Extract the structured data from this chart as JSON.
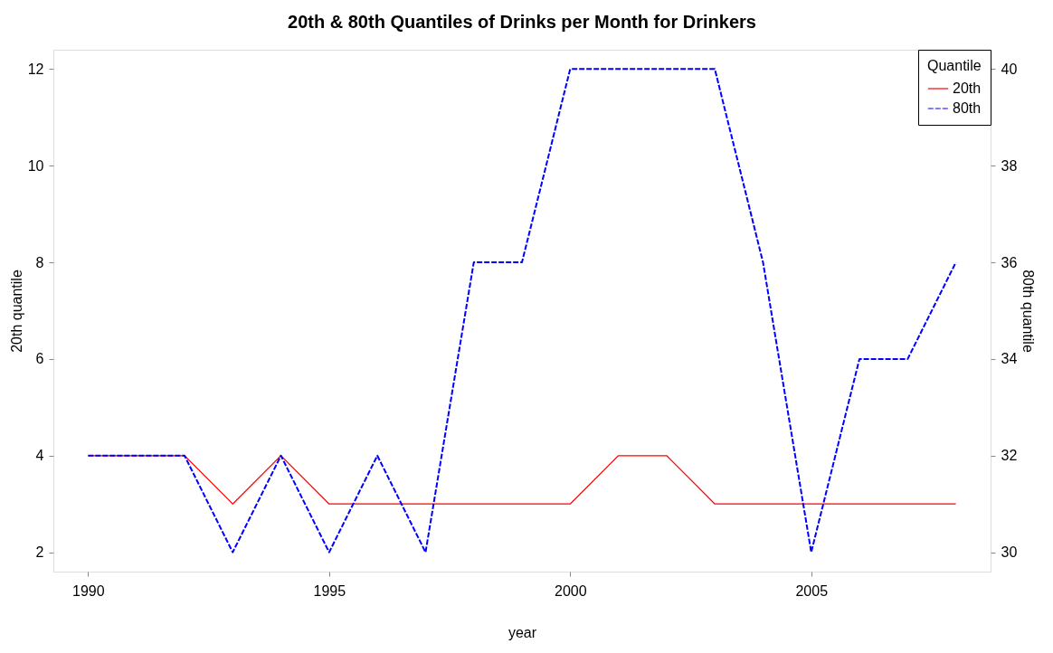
{
  "chart_data": {
    "type": "line",
    "title": "20th & 80th Quantiles of Drinks per Month for Drinkers",
    "xlabel": "year",
    "ylabel": "20th quantile",
    "y2label": "80th quantile",
    "legend_title": "Quantile",
    "legend": "top right",
    "grid": false,
    "marker": "none",
    "x": [
      1990,
      1991,
      1992,
      1993,
      1994,
      1995,
      1996,
      1997,
      1998,
      1999,
      2000,
      2001,
      2002,
      2003,
      2004,
      2005,
      2006,
      2007,
      2008
    ],
    "xlim": [
      1989.28,
      2008.72
    ],
    "xticks": [
      1990,
      1995,
      2000,
      2005
    ],
    "ylim": [
      1.6,
      12.4
    ],
    "yticks": [
      2,
      4,
      6,
      8,
      10,
      12
    ],
    "y2lim": [
      29.6,
      40.4
    ],
    "y2ticks": [
      30,
      32,
      34,
      36,
      38,
      40
    ],
    "series": [
      {
        "name": "20th",
        "color": "#ff0000",
        "line_style": "solid",
        "values": [
          4,
          4,
          4,
          3,
          4,
          3,
          3,
          3,
          3,
          3,
          3,
          4,
          4,
          3,
          3,
          3,
          3,
          3,
          3
        ]
      },
      {
        "name": "80th",
        "color": "#0000ff",
        "line_style": "dashed",
        "axis": "y2",
        "values": [
          32,
          32,
          32,
          30,
          32,
          30,
          32,
          30,
          36,
          36,
          40,
          40,
          40,
          40,
          36,
          30,
          34,
          34,
          36
        ]
      }
    ]
  }
}
